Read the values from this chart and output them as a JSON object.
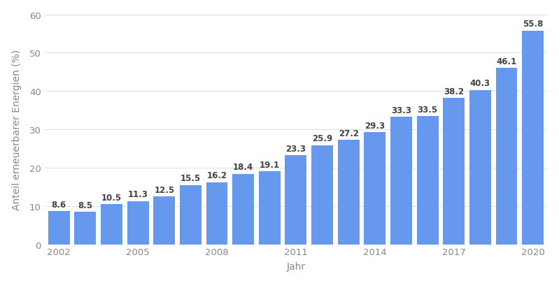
{
  "years": [
    2002,
    2003,
    2004,
    2005,
    2006,
    2007,
    2008,
    2009,
    2010,
    2011,
    2012,
    2013,
    2014,
    2015,
    2016,
    2017,
    2018,
    2019,
    2020
  ],
  "values": [
    8.6,
    8.5,
    10.5,
    11.3,
    12.5,
    15.5,
    16.2,
    18.4,
    19.1,
    23.3,
    25.9,
    27.2,
    29.3,
    33.3,
    33.5,
    38.2,
    40.3,
    46.1,
    55.8
  ],
  "bar_color": "#6699ee",
  "background_color": "#ffffff",
  "plot_bg_color": "#ffffff",
  "ylabel": "Anteil erneuerbarer Energien (%)",
  "xlabel": "Jahr",
  "ylim": [
    0,
    60
  ],
  "yticks": [
    0,
    10,
    20,
    30,
    40,
    50,
    60
  ],
  "xtick_labels": [
    "2002",
    "",
    "",
    "2005",
    "",
    "",
    "2008",
    "",
    "",
    "2011",
    "",
    "",
    "2014",
    "",
    "",
    "2017",
    "",
    "",
    "2020"
  ],
  "label_fontsize": 8.5,
  "axis_label_fontsize": 10,
  "grid_color": "#e0e0e0",
  "text_color": "#444444",
  "tick_color": "#888888"
}
